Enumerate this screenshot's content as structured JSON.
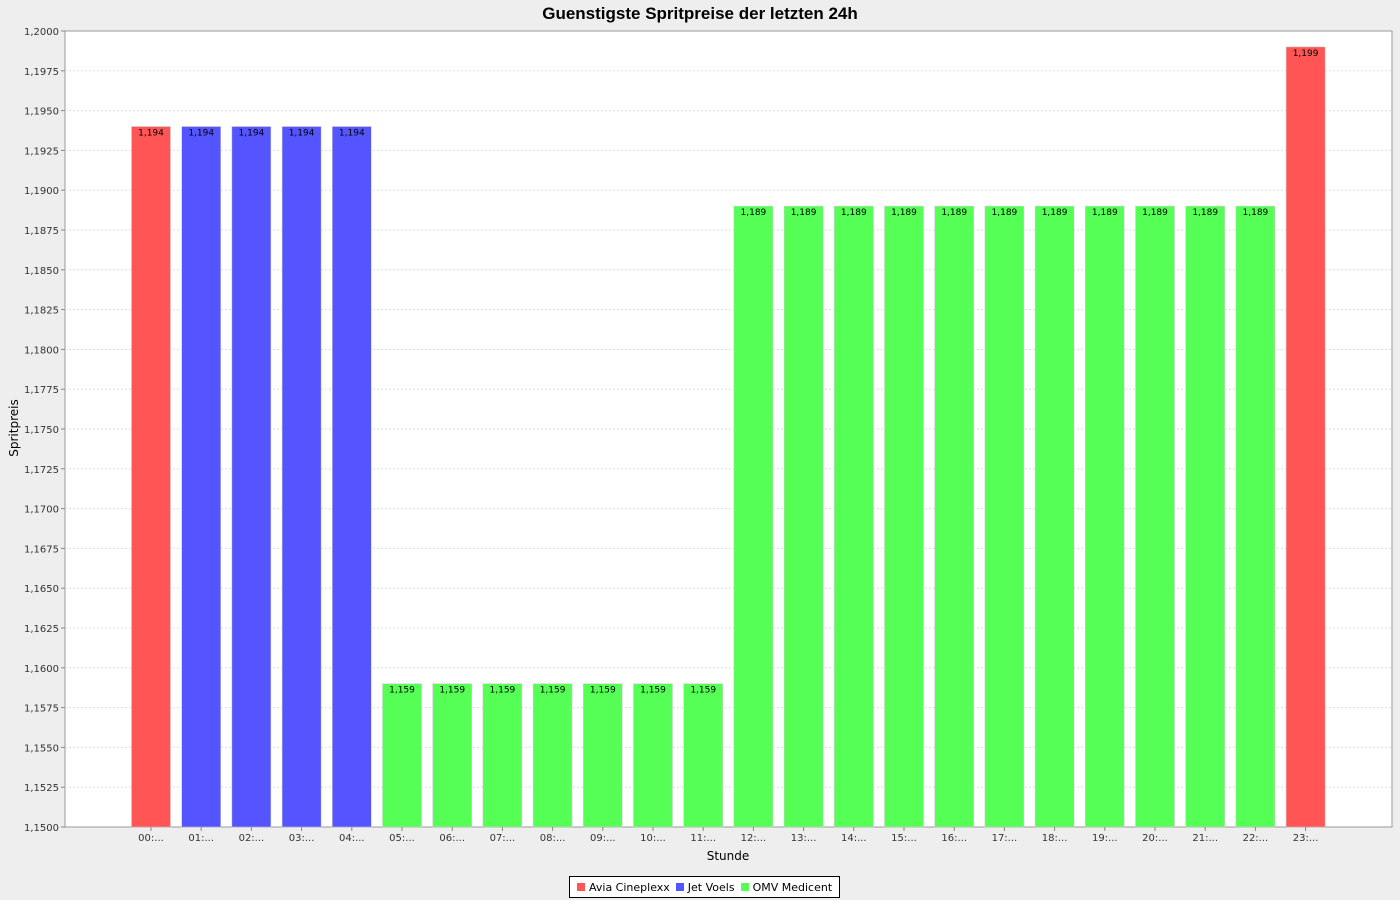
{
  "chart_data": {
    "type": "bar",
    "title": "Guenstigste Spritpreise der letzten 24h",
    "xlabel": "Stunde",
    "ylabel": "Spritpreis",
    "ylim": [
      1.15,
      1.2
    ],
    "yticks": [
      "1,1500",
      "1,1525",
      "1,1550",
      "1,1575",
      "1,1600",
      "1,1625",
      "1,1650",
      "1,1675",
      "1,1700",
      "1,1725",
      "1,1750",
      "1,1775",
      "1,1800",
      "1,1825",
      "1,1850",
      "1,1875",
      "1,1900",
      "1,1925",
      "1,1950",
      "1,1975",
      "1,2000"
    ],
    "grid": true,
    "legend_position": "bottom-center",
    "categories": [
      "00:...",
      "01:...",
      "02:...",
      "03:...",
      "04:...",
      "05:...",
      "06:...",
      "07:...",
      "08:...",
      "09:...",
      "10:...",
      "11:...",
      "12:...",
      "13:...",
      "14:...",
      "15:...",
      "16:...",
      "17:...",
      "18:...",
      "19:...",
      "20:...",
      "21:...",
      "22:...",
      "23:..."
    ],
    "values": [
      1.194,
      1.194,
      1.194,
      1.194,
      1.194,
      1.159,
      1.159,
      1.159,
      1.159,
      1.159,
      1.159,
      1.159,
      1.189,
      1.189,
      1.189,
      1.189,
      1.189,
      1.189,
      1.189,
      1.189,
      1.189,
      1.189,
      1.189,
      1.199
    ],
    "value_labels": [
      "1,194",
      "1,194",
      "1,194",
      "1,194",
      "1,194",
      "1,159",
      "1,159",
      "1,159",
      "1,159",
      "1,159",
      "1,159",
      "1,159",
      "1,189",
      "1,189",
      "1,189",
      "1,189",
      "1,189",
      "1,189",
      "1,189",
      "1,189",
      "1,189",
      "1,189",
      "1,189",
      "1,199"
    ],
    "bar_series": [
      0,
      1,
      1,
      1,
      1,
      2,
      2,
      2,
      2,
      2,
      2,
      2,
      2,
      2,
      2,
      2,
      2,
      2,
      2,
      2,
      2,
      2,
      2,
      0
    ],
    "series": [
      {
        "name": "Avia Cineplexx",
        "color": "#ff5555"
      },
      {
        "name": "Jet Voels",
        "color": "#5555ff"
      },
      {
        "name": "OMV Medicent",
        "color": "#55ff55"
      }
    ]
  }
}
